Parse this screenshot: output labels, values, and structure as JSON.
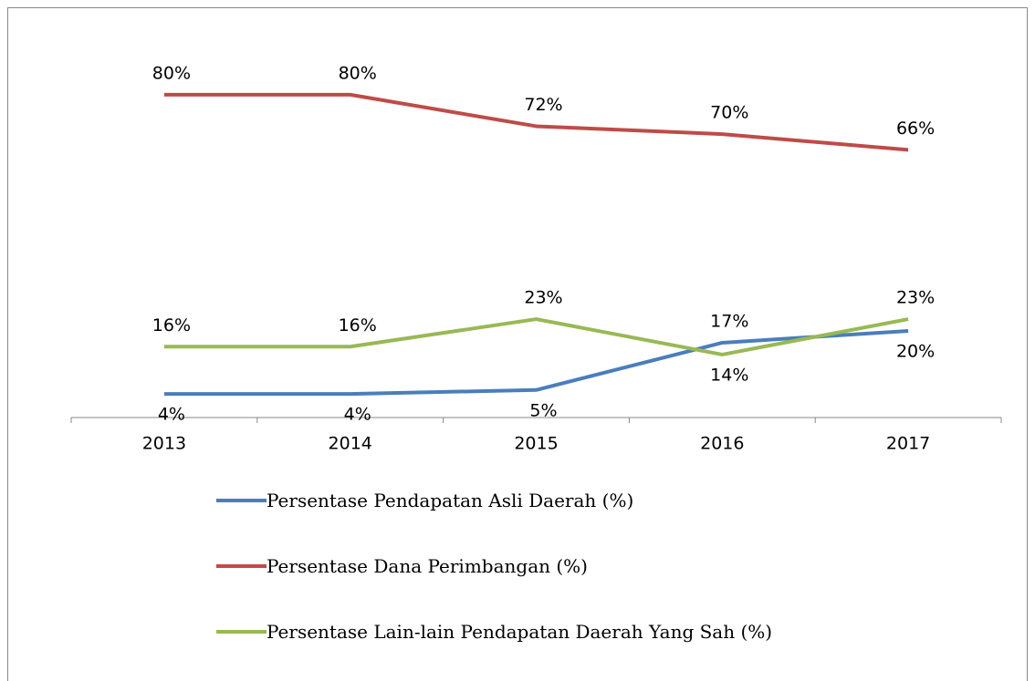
{
  "chart_data": {
    "type": "line",
    "categories": [
      "2013",
      "2014",
      "2015",
      "2016",
      "2017"
    ],
    "series": [
      {
        "name": "Persentase Pendapatan Asli Daerah (%)",
        "color": "#4a7ebb",
        "values": [
          4,
          4,
          5,
          17,
          20
        ],
        "value_labels": [
          "4%",
          "4%",
          "5%",
          "17%",
          "20%"
        ]
      },
      {
        "name": "Persentase Dana Perimbangan (%)",
        "color": "#be4b48",
        "values": [
          80,
          80,
          72,
          70,
          66
        ],
        "value_labels": [
          "80%",
          "80%",
          "72%",
          "70%",
          "66%"
        ]
      },
      {
        "name": "Persentase Lain-lain Pendapatan Daerah Yang Sah (%)",
        "color": "#98b954",
        "values": [
          16,
          16,
          23,
          14,
          23
        ],
        "value_labels": [
          "16%",
          "16%",
          "23%",
          "14%",
          "23%"
        ]
      }
    ],
    "ylim": [
      -2,
      86
    ],
    "legend": "bottom"
  }
}
